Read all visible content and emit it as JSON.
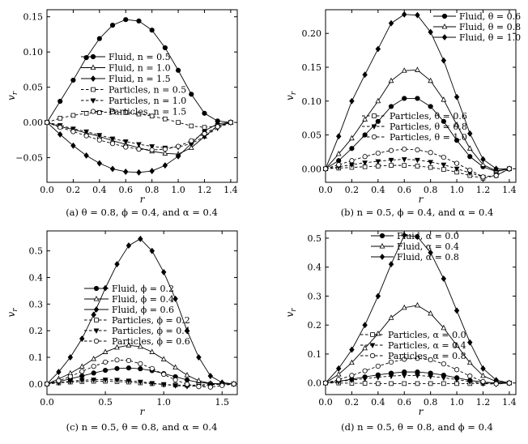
{
  "chart_data": [
    {
      "type": "line",
      "caption": "(a) θ = 0.8, ϕ = 0.4, and α = 0.4",
      "xlabel": "r",
      "ylabel": "v_r",
      "xlim": [
        0,
        1.45
      ],
      "ylim": [
        -0.085,
        0.16
      ],
      "xticks": [
        0.0,
        0.2,
        0.4,
        0.6,
        0.8,
        1.0,
        1.2,
        1.4
      ],
      "xtick_labels": [
        "0.0",
        "0.2",
        "0.4",
        "0.6",
        "0.8",
        "1.0",
        "1.2",
        "1.4"
      ],
      "yticks": [
        -0.05,
        0.0,
        0.05,
        0.1,
        0.15
      ],
      "ytick_labels": [
        "−0.05",
        "0.00",
        "0.05",
        "0.10",
        "0.15"
      ],
      "legend_placement": "center-left",
      "x": [
        0.0,
        0.1,
        0.2,
        0.3,
        0.4,
        0.5,
        0.6,
        0.7,
        0.8,
        0.9,
        1.0,
        1.1,
        1.2,
        1.3,
        1.4
      ],
      "series": [
        {
          "name": "Fluid, n = 0.5",
          "style": "solid",
          "marker": "filled-circle",
          "values": [
            0.0,
            0.03,
            0.06,
            0.092,
            0.119,
            0.138,
            0.146,
            0.144,
            0.131,
            0.106,
            0.074,
            0.04,
            0.013,
            0.002,
            0.0
          ]
        },
        {
          "name": "Fluid, n = 1.0",
          "style": "solid",
          "marker": "open-triangle",
          "values": [
            0.0,
            -0.006,
            -0.01,
            -0.015,
            -0.02,
            -0.026,
            -0.031,
            -0.036,
            -0.041,
            -0.044,
            -0.045,
            -0.036,
            -0.02,
            -0.005,
            0.0
          ]
        },
        {
          "name": "Fluid, n = 1.5",
          "style": "solid",
          "marker": "filled-diamond",
          "values": [
            0.0,
            -0.017,
            -0.033,
            -0.047,
            -0.058,
            -0.066,
            -0.07,
            -0.071,
            -0.069,
            -0.061,
            -0.048,
            -0.03,
            -0.012,
            -0.002,
            0.0
          ]
        },
        {
          "name": "Particles, n = 0.5",
          "style": "dashed",
          "marker": "open-square",
          "values": [
            0.0,
            0.006,
            0.01,
            0.013,
            0.014,
            0.015,
            0.014,
            0.012,
            0.009,
            0.005,
            0.0,
            -0.005,
            -0.007,
            -0.005,
            0.0
          ]
        },
        {
          "name": "Particles, n = 1.0",
          "style": "dashed",
          "marker": "filled-triangle-down",
          "values": [
            0.0,
            -0.004,
            -0.009,
            -0.013,
            -0.018,
            -0.023,
            -0.027,
            -0.031,
            -0.034,
            -0.036,
            -0.035,
            -0.03,
            -0.02,
            -0.008,
            0.0
          ]
        },
        {
          "name": "Particles, n = 1.5",
          "style": "dashed",
          "marker": "open-circle",
          "values": [
            0.0,
            -0.007,
            -0.013,
            -0.019,
            -0.025,
            -0.03,
            -0.035,
            -0.038,
            -0.039,
            -0.038,
            -0.034,
            -0.026,
            -0.016,
            -0.006,
            0.0
          ]
        }
      ]
    },
    {
      "type": "line",
      "caption": "(b) n = 0.5, ϕ = 0.4, and  α = 0.4",
      "xlabel": "r",
      "ylabel": "v_r",
      "xlim": [
        0,
        1.45
      ],
      "ylim": [
        -0.02,
        0.235
      ],
      "xticks": [
        0.0,
        0.2,
        0.4,
        0.6,
        0.8,
        1.0,
        1.2,
        1.4
      ],
      "xtick_labels": [
        "0.0",
        "0.2",
        "0.4",
        "0.6",
        "0.8",
        "1.0",
        "1.2",
        "1.4"
      ],
      "yticks": [
        0.0,
        0.05,
        0.1,
        0.15,
        0.2
      ],
      "ytick_labels": [
        "0.00",
        "0.05",
        "0.10",
        "0.15",
        "0.20"
      ],
      "legend_placement": "top-right and center",
      "x": [
        0.0,
        0.1,
        0.2,
        0.3,
        0.4,
        0.5,
        0.6,
        0.7,
        0.8,
        0.9,
        1.0,
        1.1,
        1.2,
        1.3,
        1.4
      ],
      "series": [
        {
          "name": "Fluid, θ = 0.6",
          "style": "solid",
          "marker": "filled-circle",
          "values": [
            0.0,
            0.012,
            0.03,
            0.05,
            0.07,
            0.092,
            0.104,
            0.104,
            0.092,
            0.07,
            0.042,
            0.018,
            0.003,
            -0.004,
            0.0
          ]
        },
        {
          "name": "Fluid, θ = 0.8",
          "style": "solid",
          "marker": "open-triangle",
          "values": [
            0.0,
            0.022,
            0.045,
            0.073,
            0.1,
            0.13,
            0.145,
            0.146,
            0.13,
            0.102,
            0.065,
            0.03,
            0.006,
            -0.003,
            0.0
          ]
        },
        {
          "name": "Fluid, θ = 1.0",
          "style": "solid",
          "marker": "filled-diamond",
          "values": [
            0.0,
            0.048,
            0.1,
            0.139,
            0.177,
            0.215,
            0.228,
            0.227,
            0.202,
            0.16,
            0.106,
            0.052,
            0.014,
            0.0,
            0.0
          ]
        },
        {
          "name": "Particles, θ = 0.6",
          "style": "dashed",
          "marker": "open-square",
          "values": [
            0.0,
            0.001,
            0.002,
            0.003,
            0.004,
            0.005,
            0.005,
            0.004,
            0.002,
            -0.001,
            -0.005,
            -0.01,
            -0.014,
            -0.01,
            0.0
          ]
        },
        {
          "name": "Particles, θ = 0.8",
          "style": "dashed",
          "marker": "filled-triangle-down",
          "values": [
            0.0,
            0.003,
            0.006,
            0.009,
            0.011,
            0.013,
            0.014,
            0.013,
            0.01,
            0.006,
            0.0,
            -0.006,
            -0.012,
            -0.01,
            0.0
          ]
        },
        {
          "name": "Particles, θ = 1.0",
          "style": "dashed",
          "marker": "open-circle",
          "values": [
            0.0,
            0.006,
            0.012,
            0.018,
            0.023,
            0.027,
            0.029,
            0.028,
            0.024,
            0.017,
            0.008,
            -0.002,
            -0.012,
            -0.01,
            0.0
          ]
        }
      ]
    },
    {
      "type": "line",
      "caption": "(c) n = 0.5, θ = 0.8, and α = 0.4",
      "xlabel": "r",
      "ylabel": "v_r",
      "xlim": [
        0,
        1.63
      ],
      "ylim": [
        -0.04,
        0.575
      ],
      "xticks": [
        0.0,
        0.5,
        1.0,
        1.5
      ],
      "xtick_labels": [
        "0.0",
        "0.5",
        "1.0",
        "1.5"
      ],
      "yticks": [
        0.0,
        0.1,
        0.2,
        0.3,
        0.4,
        0.5
      ],
      "ytick_labels": [
        "0.0",
        "0.1",
        "0.2",
        "0.3",
        "0.4",
        "0.5"
      ],
      "legend_placement": "center-left",
      "x": [
        0.0,
        0.1,
        0.2,
        0.3,
        0.4,
        0.5,
        0.6,
        0.7,
        0.8,
        0.9,
        1.0,
        1.1,
        1.2,
        1.3,
        1.4,
        1.5,
        1.6
      ],
      "series": [
        {
          "name": "Fluid, ϕ = 0.2",
          "style": "solid",
          "marker": "filled-circle",
          "values": [
            0.0,
            0.009,
            0.019,
            0.03,
            0.041,
            0.051,
            0.058,
            0.06,
            0.057,
            0.05,
            0.039,
            0.027,
            0.015,
            0.006,
            0.001,
            0.0,
            0.0
          ]
        },
        {
          "name": "Fluid, ϕ = 0.4",
          "style": "solid",
          "marker": "open-triangle",
          "values": [
            0.0,
            0.019,
            0.04,
            0.065,
            0.094,
            0.12,
            0.137,
            0.145,
            0.14,
            0.12,
            0.093,
            0.062,
            0.033,
            0.012,
            0.002,
            0.0,
            0.0
          ]
        },
        {
          "name": "Fluid, ϕ = 0.6",
          "style": "solid",
          "marker": "filled-diamond",
          "values": [
            0.0,
            0.045,
            0.1,
            0.17,
            0.26,
            0.36,
            0.45,
            0.52,
            0.545,
            0.5,
            0.42,
            0.32,
            0.2,
            0.1,
            0.03,
            0.005,
            0.0
          ]
        },
        {
          "name": "Particles, ϕ = 0.2",
          "style": "dashed",
          "marker": "open-square",
          "values": [
            0.0,
            0.004,
            0.007,
            0.009,
            0.01,
            0.01,
            0.009,
            0.007,
            0.004,
            0.001,
            -0.002,
            -0.004,
            -0.005,
            -0.004,
            -0.002,
            0.0,
            0.0
          ]
        },
        {
          "name": "Particles, ϕ = 0.4",
          "style": "dashed",
          "marker": "filled-triangle-down",
          "values": [
            0.0,
            0.005,
            0.01,
            0.014,
            0.016,
            0.016,
            0.015,
            0.012,
            0.008,
            0.003,
            -0.002,
            -0.006,
            -0.009,
            -0.008,
            -0.004,
            -0.001,
            0.0
          ]
        },
        {
          "name": "Particles, ϕ = 0.6",
          "style": "dashed",
          "marker": "open-circle",
          "values": [
            0.0,
            0.012,
            0.028,
            0.047,
            0.066,
            0.082,
            0.09,
            0.088,
            0.076,
            0.058,
            0.036,
            0.015,
            -0.001,
            -0.01,
            -0.012,
            -0.006,
            0.0
          ]
        }
      ]
    },
    {
      "type": "line",
      "caption": "(d) n = 0.5, θ = 0.8, and ϕ = 0.4",
      "xlabel": "r",
      "ylabel": "v_r",
      "xlim": [
        0,
        1.45
      ],
      "ylim": [
        -0.04,
        0.525
      ],
      "xticks": [
        0.0,
        0.2,
        0.4,
        0.6,
        0.8,
        1.0,
        1.2,
        1.4
      ],
      "xtick_labels": [
        "0.0",
        "0.2",
        "0.4",
        "0.6",
        "0.8",
        "1.0",
        "1.2",
        "1.4"
      ],
      "yticks": [
        0.0,
        0.1,
        0.2,
        0.3,
        0.4,
        0.5
      ],
      "ytick_labels": [
        "0.0",
        "0.1",
        "0.2",
        "0.3",
        "0.4",
        "0.5"
      ],
      "legend_placement": "top-right and center",
      "x": [
        0.0,
        0.1,
        0.2,
        0.3,
        0.4,
        0.5,
        0.6,
        0.7,
        0.8,
        0.9,
        1.0,
        1.1,
        1.2,
        1.3,
        1.4
      ],
      "series": [
        {
          "name": "Fluid, α = 0.0",
          "style": "solid",
          "marker": "filled-circle",
          "values": [
            0.0,
            0.006,
            0.013,
            0.021,
            0.028,
            0.034,
            0.038,
            0.038,
            0.034,
            0.027,
            0.018,
            0.009,
            0.003,
            0.0,
            0.0
          ]
        },
        {
          "name": "Fluid, α = 0.4",
          "style": "solid",
          "marker": "open-triangle",
          "values": [
            0.0,
            0.03,
            0.07,
            0.12,
            0.17,
            0.225,
            0.26,
            0.268,
            0.24,
            0.19,
            0.13,
            0.07,
            0.025,
            0.005,
            0.0
          ]
        },
        {
          "name": "Fluid, α = 0.8",
          "style": "solid",
          "marker": "filled-diamond",
          "values": [
            0.0,
            0.05,
            0.115,
            0.2,
            0.3,
            0.41,
            0.51,
            0.505,
            0.45,
            0.36,
            0.25,
            0.14,
            0.05,
            0.01,
            0.0
          ]
        },
        {
          "name": "Particles, α = 0.0",
          "style": "dashed",
          "marker": "open-square",
          "values": [
            0.0,
            0.0,
            -0.001,
            -0.001,
            -0.002,
            -0.002,
            -0.002,
            -0.002,
            -0.002,
            -0.002,
            -0.002,
            -0.002,
            -0.001,
            -0.001,
            0.0
          ]
        },
        {
          "name": "Particles, α = 0.4",
          "style": "dashed",
          "marker": "filled-triangle-down",
          "values": [
            0.0,
            0.005,
            0.01,
            0.015,
            0.02,
            0.024,
            0.026,
            0.026,
            0.023,
            0.018,
            0.012,
            0.005,
            -0.002,
            -0.004,
            0.0
          ]
        },
        {
          "name": "Particles, α = 0.8",
          "style": "dashed",
          "marker": "open-circle",
          "values": [
            0.0,
            0.012,
            0.026,
            0.042,
            0.058,
            0.072,
            0.082,
            0.085,
            0.08,
            0.066,
            0.046,
            0.024,
            0.005,
            -0.003,
            0.0
          ]
        }
      ]
    }
  ]
}
